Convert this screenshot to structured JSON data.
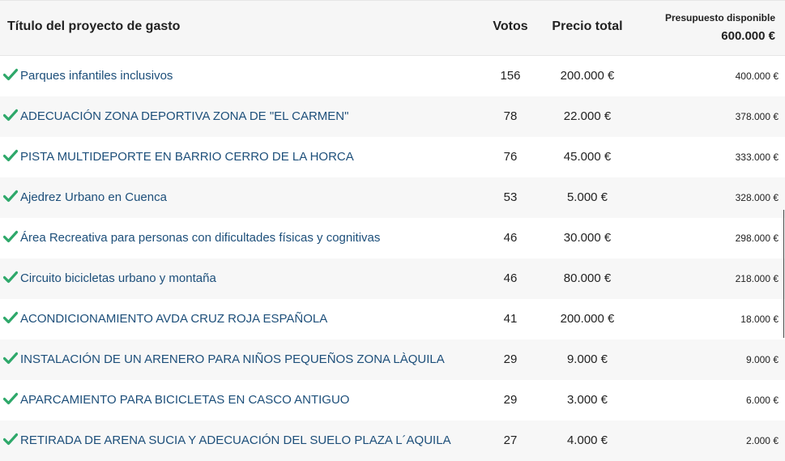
{
  "header": {
    "title": "Título del proyecto de gasto",
    "votes": "Votos",
    "price": "Precio total",
    "budget_label": "Presupuesto disponible",
    "budget_amount": "600.000 €"
  },
  "colors": {
    "check": "#2ea86a",
    "link": "#1d4f7a"
  },
  "rows": [
    {
      "icon": "check-icon",
      "title": "Parques infantiles inclusivos",
      "votes": "156",
      "price": "200.000 €",
      "remaining": "400.000 €"
    },
    {
      "icon": "check-icon",
      "title": "ADECUACIÓN ZONA DEPORTIVA ZONA DE \"EL CARMEN\"",
      "votes": "78",
      "price": "22.000 €",
      "remaining": "378.000 €"
    },
    {
      "icon": "check-icon",
      "title": "PISTA MULTIDEPORTE EN BARRIO CERRO DE LA HORCA",
      "votes": "76",
      "price": "45.000 €",
      "remaining": "333.000 €"
    },
    {
      "icon": "check-icon",
      "title": "Ajedrez Urbano en Cuenca",
      "votes": "53",
      "price": "5.000 €",
      "remaining": "328.000 €"
    },
    {
      "icon": "check-icon",
      "title": "Área Recreativa para personas con dificultades físicas y cognitivas",
      "votes": "46",
      "price": "30.000 €",
      "remaining": "298.000 €"
    },
    {
      "icon": "check-icon",
      "title": "Circuito bicicletas urbano y montaña",
      "votes": "46",
      "price": "80.000 €",
      "remaining": "218.000 €"
    },
    {
      "icon": "check-icon",
      "title": "ACONDICIONAMIENTO AVDA CRUZ ROJA ESPAÑOLA",
      "votes": "41",
      "price": "200.000 €",
      "remaining": "18.000 €"
    },
    {
      "icon": "check-icon",
      "title": "INSTALACIÓN DE UN ARENERO PARA NIÑOS PEQUEÑOS ZONA LÀQUILA",
      "votes": "29",
      "price": "9.000 €",
      "remaining": "9.000 €"
    },
    {
      "icon": "check-icon",
      "title": "APARCAMIENTO PARA BICICLETAS EN CASCO ANTIGUO",
      "votes": "29",
      "price": "3.000 €",
      "remaining": "6.000 €"
    },
    {
      "icon": "check-icon",
      "title": "RETIRADA DE ARENA SUCIA Y ADECUACIÓN DEL SUELO PLAZA L´AQUILA",
      "votes": "27",
      "price": "4.000 €",
      "remaining": "2.000 €"
    }
  ]
}
